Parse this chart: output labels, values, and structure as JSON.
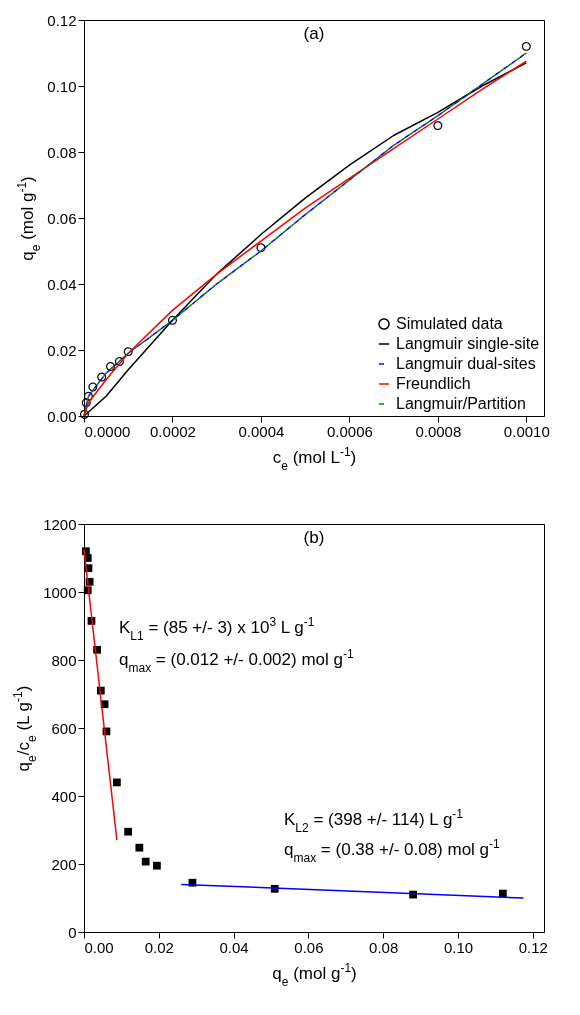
{
  "chart_data": [
    {
      "type": "line",
      "title": "(a)",
      "xlabel": "c$_{e}$ (mol L$^{-1}$)",
      "ylabel": "q$_{e}$ (mol g$^{-1}$)",
      "xlim": [
        0,
        0.00104
      ],
      "ylim": [
        0,
        0.12
      ],
      "xticks": [
        {
          "value": 0,
          "label": "0.0000"
        },
        {
          "value": 0.0002,
          "label": "0.0002"
        },
        {
          "value": 0.0004,
          "label": "0.0004"
        },
        {
          "value": 0.0006,
          "label": "0.0006"
        },
        {
          "value": 0.0008,
          "label": "0.0008"
        },
        {
          "value": 0.001,
          "label": "0.0010"
        }
      ],
      "yticks": [
        {
          "value": 0,
          "label": "0.00"
        },
        {
          "value": 0.02,
          "label": "0.02"
        },
        {
          "value": 0.04,
          "label": "0.04"
        },
        {
          "value": 0.06,
          "label": "0.06"
        },
        {
          "value": 0.08,
          "label": "0.08"
        },
        {
          "value": 0.1,
          "label": "0.10"
        },
        {
          "value": 0.12,
          "label": "0.12"
        }
      ],
      "grid": false,
      "legend": "bottom right",
      "series": [
        {
          "name": "Simulated data",
          "type": "scatter",
          "marker": "circle",
          "color": "#000000",
          "x": [
            1e-06,
            5e-06,
            1e-05,
            2e-05,
            4e-05,
            6e-05,
            8e-05,
            0.0001,
            0.0002,
            0.0004,
            0.0008,
            0.001
          ],
          "values": [
            0.0005,
            0.004,
            0.006,
            0.0088,
            0.0118,
            0.015,
            0.0165,
            0.0195,
            0.029,
            0.051,
            0.088,
            0.112
          ]
        },
        {
          "name": "Langmuir single-site",
          "line_style": "solid",
          "color": "#000000",
          "x": [
            0,
            5e-05,
            0.0001,
            0.0002,
            0.0003,
            0.0004,
            0.0005,
            0.0006,
            0.0007,
            0.0008,
            0.0009,
            0.001
          ],
          "values": [
            0,
            0.006,
            0.014,
            0.029,
            0.043,
            0.055,
            0.066,
            0.076,
            0.085,
            0.092,
            0.1,
            0.107
          ]
        },
        {
          "name": "Langmuir dual-sites",
          "line_style": "dashed",
          "color": "#0000ff",
          "x": [
            0,
            1e-05,
            5e-05,
            0.0001,
            0.0002,
            0.0003,
            0.0004,
            0.0005,
            0.0006,
            0.0007,
            0.0008,
            0.0009,
            0.001
          ],
          "values": [
            0,
            0.006,
            0.013,
            0.019,
            0.029,
            0.04,
            0.05,
            0.061,
            0.0715,
            0.082,
            0.091,
            0.1005,
            0.11
          ]
        },
        {
          "name": "Freundlich",
          "line_style": "solid",
          "color": "#ff0000",
          "x": [
            0,
            1e-05,
            5e-05,
            0.0001,
            0.0002,
            0.0003,
            0.0004,
            0.0005,
            0.0006,
            0.0007,
            0.0008,
            0.0009,
            0.001
          ],
          "values": [
            0,
            0.004,
            0.011,
            0.019,
            0.032,
            0.043,
            0.053,
            0.063,
            0.072,
            0.081,
            0.09,
            0.099,
            0.1075
          ]
        },
        {
          "name": "Langmuir/Partition",
          "line_style": "dashed",
          "color": "#008000",
          "x": [
            0,
            1e-05,
            5e-05,
            0.0001,
            0.0002,
            0.0003,
            0.0004,
            0.0005,
            0.0006,
            0.0007,
            0.0008,
            0.0009,
            0.001
          ],
          "values": [
            0,
            0.006,
            0.013,
            0.019,
            0.029,
            0.04,
            0.05,
            0.061,
            0.0715,
            0.082,
            0.091,
            0.1005,
            0.11
          ]
        }
      ]
    },
    {
      "type": "scatter",
      "title": "(b)",
      "xlabel": "q$_{e}$ (mol g$^{-1}$)",
      "ylabel": "q$_{e}$/c$_{e}$ (L g$^{-1}$)",
      "xlim": [
        0,
        0.123
      ],
      "ylim": [
        0,
        1200
      ],
      "xticks": [
        {
          "value": 0,
          "label": "0.00"
        },
        {
          "value": 0.02,
          "label": "0.02"
        },
        {
          "value": 0.04,
          "label": "0.04"
        },
        {
          "value": 0.06,
          "label": "0.06"
        },
        {
          "value": 0.08,
          "label": "0.08"
        },
        {
          "value": 0.1,
          "label": "0.10"
        },
        {
          "value": 0.12,
          "label": "0.12"
        }
      ],
      "yticks": [
        0,
        200,
        400,
        600,
        800,
        1000,
        1200
      ],
      "grid": false,
      "annotations": [
        "K$_{L1}$ = (85 +/- 3) x 10$^{3}$ L g$^{-1}$",
        "q$_{max}$ = (0.012 +/- 0.002) mol g$^{-1}$",
        "K$_{L2}$ = (398 +/- 114) L g$^{-1}$",
        "q$_{max}$ = (0.38 +/- 0.08) mol g$^{-1}$"
      ],
      "series": [
        {
          "marker": "square",
          "color": "#000000",
          "x": [
            0.0005,
            0.001,
            0.0012,
            0.0015,
            0.001,
            0.002,
            0.0035,
            0.0045,
            0.0055,
            0.006,
            0.0088,
            0.0118,
            0.0148,
            0.0165,
            0.0195,
            0.029,
            0.051,
            0.088,
            0.112
          ],
          "values": [
            1120,
            1100,
            1070,
            1030,
            1005,
            915,
            830,
            710,
            670,
            590,
            440,
            295,
            248,
            207,
            195,
            145,
            127,
            110,
            113
          ]
        },
        {
          "type": "line",
          "line_style": "solid",
          "color": "#ff0000",
          "x": [
            0,
            0.0088
          ],
          "values": [
            1125,
            270
          ]
        },
        {
          "type": "line",
          "line_style": "solid",
          "color": "#0000ff",
          "x": [
            0.026,
            0.1175
          ],
          "values": [
            140,
            100
          ]
        }
      ]
    }
  ]
}
